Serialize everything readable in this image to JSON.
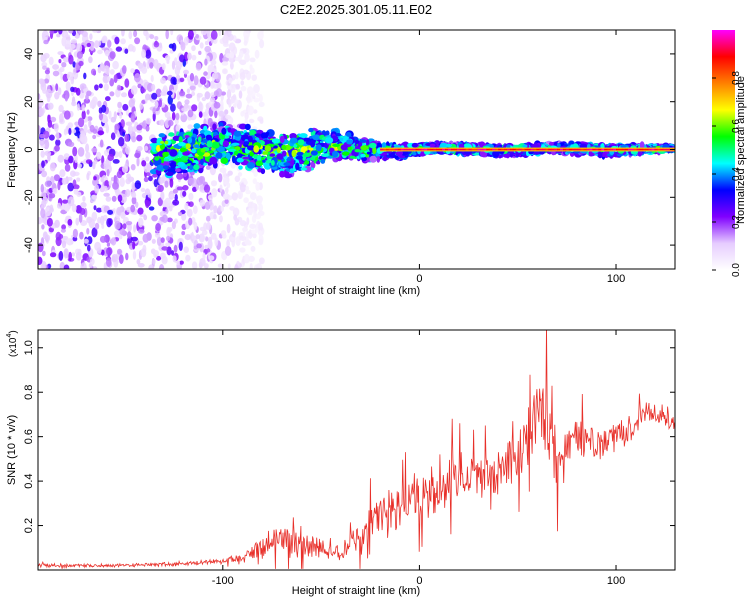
{
  "title": "C2E2.2025.301.05.11.E02",
  "chart_data": [
    {
      "type": "heatmap",
      "name": "spectrogram",
      "xlabel": "Height of straight line (km)",
      "ylabel": "Frequency (Hz)",
      "xlim": [
        -194,
        130
      ],
      "ylim": [
        -50,
        50
      ],
      "xticks": [
        -100,
        0,
        100
      ],
      "xtick_labels": [
        "-100",
        "0",
        "100"
      ],
      "yticks": [
        -40,
        -20,
        0,
        20,
        40
      ],
      "ytick_labels": [
        "-40",
        "-20",
        "0",
        "20",
        "40"
      ],
      "band_center_hz": 0,
      "band_halfwidth_hz": [
        [
          -130,
          9
        ],
        [
          -100,
          8
        ],
        [
          -60,
          8
        ],
        [
          -30,
          4
        ],
        [
          0,
          2
        ],
        [
          100,
          2
        ],
        [
          130,
          1
        ]
      ],
      "noise_region_km": [
        -194,
        -95
      ],
      "strong_line_km": [
        -20,
        130
      ],
      "colorbar": {
        "label": "Normalized spectral amplitude",
        "range": [
          0.0,
          1.0
        ],
        "ticks": [
          0.0,
          0.2,
          0.4,
          0.6,
          0.8
        ],
        "tick_labels": [
          "0.0",
          "0.2",
          "0.4",
          "0.6",
          "0.8"
        ],
        "colors": [
          "#ffffff",
          "#e6ccff",
          "#8000ff",
          "#0000ff",
          "#00ffff",
          "#00ff00",
          "#ffff00",
          "#ff8000",
          "#ff0000",
          "#ff00ff"
        ]
      }
    },
    {
      "type": "line",
      "name": "snr",
      "xlabel": "Height of straight line (km)",
      "ylabel": "SNR (10 * v/v)",
      "scale_label": "(x10",
      "scale_exponent": "4",
      "xlim": [
        -194,
        130
      ],
      "ylim": [
        0,
        1.08
      ],
      "xticks": [
        -100,
        0,
        100
      ],
      "xtick_labels": [
        "-100",
        "0",
        "100"
      ],
      "yticks": [
        0.2,
        0.4,
        0.6,
        0.8,
        1.0
      ],
      "ytick_labels": [
        "0.2",
        "0.4",
        "0.6",
        "0.8",
        "1.0"
      ],
      "color": "#e8302a",
      "x": [
        -194,
        -150,
        -120,
        -100,
        -90,
        -80,
        -72,
        -65,
        -58,
        -50,
        -45,
        -40,
        -35,
        -30,
        -25,
        -20,
        -15,
        -10,
        -5,
        0,
        5,
        10,
        15,
        20,
        25,
        30,
        35,
        40,
        45,
        50,
        55,
        60,
        62,
        65,
        67,
        70,
        75,
        80,
        85,
        90,
        95,
        100,
        105,
        110,
        115,
        120,
        125,
        130
      ],
      "values": [
        0.02,
        0.02,
        0.03,
        0.04,
        0.06,
        0.1,
        0.14,
        0.12,
        0.11,
        0.1,
        0.07,
        0.09,
        0.12,
        0.15,
        0.2,
        0.24,
        0.26,
        0.28,
        0.32,
        0.33,
        0.34,
        0.36,
        0.4,
        0.42,
        0.42,
        0.44,
        0.44,
        0.46,
        0.48,
        0.52,
        0.58,
        0.72,
        0.65,
        0.72,
        0.58,
        0.48,
        0.55,
        0.6,
        0.58,
        0.57,
        0.58,
        0.62,
        0.62,
        0.65,
        0.72,
        0.7,
        0.68,
        0.66
      ],
      "noise_amp": [
        0.01,
        0.01,
        0.01,
        0.015,
        0.02,
        0.06,
        0.1,
        0.08,
        0.06,
        0.05,
        0.04,
        0.05,
        0.06,
        0.07,
        0.1,
        0.12,
        0.12,
        0.12,
        0.12,
        0.12,
        0.12,
        0.12,
        0.12,
        0.13,
        0.13,
        0.12,
        0.12,
        0.12,
        0.13,
        0.14,
        0.18,
        0.25,
        0.22,
        0.25,
        0.2,
        0.15,
        0.12,
        0.1,
        0.09,
        0.08,
        0.07,
        0.07,
        0.06,
        0.06,
        0.06,
        0.05,
        0.05,
        0.05
      ]
    }
  ]
}
